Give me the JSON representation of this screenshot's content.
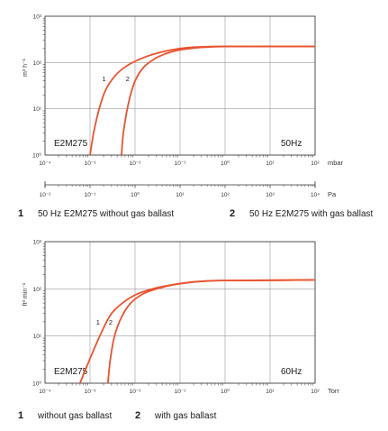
{
  "chart_data": [
    {
      "type": "line",
      "xscale": "log",
      "yscale": "log",
      "xlim": [
        0.0001,
        100
      ],
      "ylim": [
        1,
        1000
      ],
      "xlabel": "mbar",
      "ylabel": "m³ h⁻¹",
      "x_ticks": [
        "10⁻⁴",
        "10⁻³",
        "10⁻²",
        "10⁻¹",
        "10⁰",
        "10¹",
        "10²"
      ],
      "y_ticks": [
        "10⁰",
        "10¹",
        "10²",
        "10³"
      ],
      "secondary_xlabel": "Pa",
      "secondary_x_ticks": [
        "10⁻²",
        "10⁻¹",
        "10⁰",
        "10¹",
        "10²",
        "10³",
        "10⁴"
      ],
      "model": "E2M275",
      "frequency": "50Hz",
      "grid": true,
      "series": [
        {
          "name": "1",
          "x": [
            0.001,
            0.0012,
            0.0016,
            0.0022,
            0.0035,
            0.006,
            0.012,
            0.025,
            0.06,
            0.15,
            0.4,
            1,
            10,
            100
          ],
          "y": [
            1,
            3,
            10,
            25,
            50,
            80,
            115,
            150,
            185,
            210,
            220,
            222,
            222,
            222
          ]
        },
        {
          "name": "2",
          "x": [
            0.005,
            0.0055,
            0.007,
            0.0095,
            0.014,
            0.022,
            0.04,
            0.08,
            0.2,
            0.5,
            1,
            10,
            100
          ],
          "y": [
            1,
            3,
            12,
            35,
            70,
            105,
            145,
            180,
            205,
            218,
            222,
            222,
            222
          ]
        }
      ],
      "legend": [
        {
          "num": "1",
          "text": "50 Hz E2M275 without gas ballast"
        },
        {
          "num": "2",
          "text": "50 Hz E2M275 with gas ballast"
        }
      ]
    },
    {
      "type": "line",
      "xscale": "log",
      "yscale": "log",
      "xlim": [
        0.0001,
        100
      ],
      "ylim": [
        1,
        1000
      ],
      "xlabel": "Torr",
      "ylabel": "ft³ min⁻¹",
      "x_ticks": [
        "10⁻⁴",
        "10⁻³",
        "10⁻²",
        "10⁻¹",
        "10⁰",
        "10¹",
        "10²"
      ],
      "y_ticks": [
        "10⁰",
        "10¹",
        "10²",
        "10³"
      ],
      "model": "E2M275",
      "frequency": "60Hz",
      "grid": true,
      "series": [
        {
          "name": "1",
          "x": [
            0.0006,
            0.0008,
            0.0012,
            0.0018,
            0.003,
            0.006,
            0.012,
            0.03,
            0.08,
            0.2,
            0.5,
            1,
            10,
            100
          ],
          "y": [
            1,
            2,
            5,
            12,
            30,
            55,
            80,
            105,
            125,
            140,
            148,
            150,
            152,
            155
          ]
        },
        {
          "name": "2",
          "x": [
            0.0025,
            0.0028,
            0.0035,
            0.005,
            0.008,
            0.015,
            0.03,
            0.07,
            0.2,
            0.5,
            1,
            10,
            100
          ],
          "y": [
            1,
            3,
            10,
            25,
            50,
            78,
            100,
            122,
            140,
            148,
            150,
            152,
            155
          ]
        }
      ],
      "legend": [
        {
          "num": "1",
          "text": "without gas ballast"
        },
        {
          "num": "2",
          "text": "with gas ballast"
        }
      ]
    }
  ]
}
